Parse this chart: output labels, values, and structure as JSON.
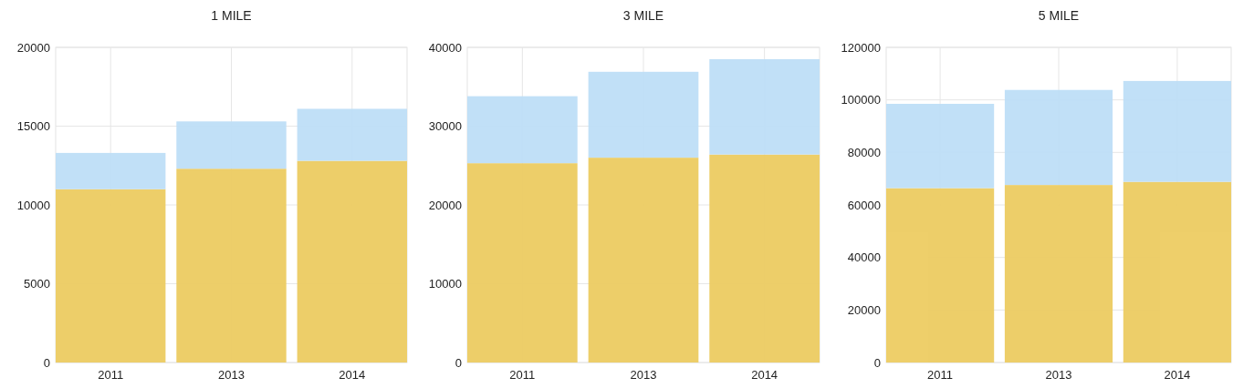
{
  "chart_data": [
    {
      "type": "bar",
      "title": "1 MILE",
      "categories": [
        "2011",
        "2013",
        "2014"
      ],
      "stacked": true,
      "series": [
        {
          "color": "#edcd65",
          "values": [
            11000,
            12300,
            12800
          ]
        },
        {
          "color": "#bfdff7",
          "values": [
            2300,
            3000,
            3300
          ]
        }
      ],
      "ylim": [
        0,
        20000
      ],
      "yticks": [
        0,
        5000,
        10000,
        15000,
        20000
      ],
      "grid": true
    },
    {
      "type": "bar",
      "title": "3 MILE",
      "categories": [
        "2011",
        "2013",
        "2014"
      ],
      "stacked": true,
      "series": [
        {
          "color": "#edcd65",
          "values": [
            25300,
            26000,
            26400
          ]
        },
        {
          "color": "#bfdff7",
          "values": [
            8500,
            10900,
            12100
          ]
        }
      ],
      "ylim": [
        0,
        40000
      ],
      "yticks": [
        0,
        10000,
        20000,
        30000,
        40000
      ],
      "grid": true
    },
    {
      "type": "bar",
      "title": "5 MILE",
      "categories": [
        "2011",
        "2013",
        "2014"
      ],
      "stacked": true,
      "series": [
        {
          "color": "#edcd65",
          "values": [
            66400,
            67600,
            68800
          ]
        },
        {
          "color": "#bfdff7",
          "values": [
            32100,
            36200,
            38400
          ]
        }
      ],
      "ylim": [
        0,
        120000
      ],
      "yticks": [
        0,
        20000,
        40000,
        60000,
        80000,
        100000,
        120000
      ],
      "grid": true
    }
  ]
}
